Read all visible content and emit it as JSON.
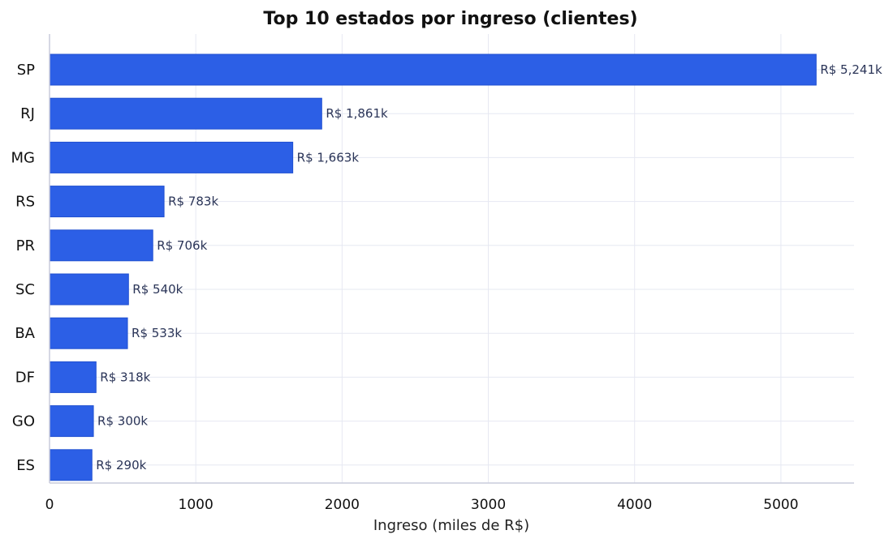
{
  "chart_data": {
    "type": "bar",
    "orientation": "horizontal",
    "title": "Top 10 estados por ingreso (clientes)",
    "xlabel": "Ingreso (miles de R$)",
    "ylabel": "",
    "categories": [
      "SP",
      "RJ",
      "MG",
      "RS",
      "PR",
      "SC",
      "BA",
      "DF",
      "GO",
      "ES"
    ],
    "values": [
      5241,
      1861,
      1663,
      783,
      706,
      540,
      533,
      318,
      300,
      290
    ],
    "value_labels": [
      "R$ 5,241k",
      "R$ 1,861k",
      "R$ 1,663k",
      "R$ 783k",
      "R$ 706k",
      "R$ 540k",
      "R$ 533k",
      "R$ 318k",
      "R$ 300k",
      "R$ 290k"
    ],
    "xlim": [
      0,
      5500
    ],
    "xticks": [
      0,
      1000,
      2000,
      3000,
      4000,
      5000
    ],
    "xtick_labels": [
      "0",
      "1000",
      "2000",
      "3000",
      "4000",
      "5000"
    ],
    "grid": true,
    "colors": {
      "bar": "#2c5fe6"
    }
  }
}
